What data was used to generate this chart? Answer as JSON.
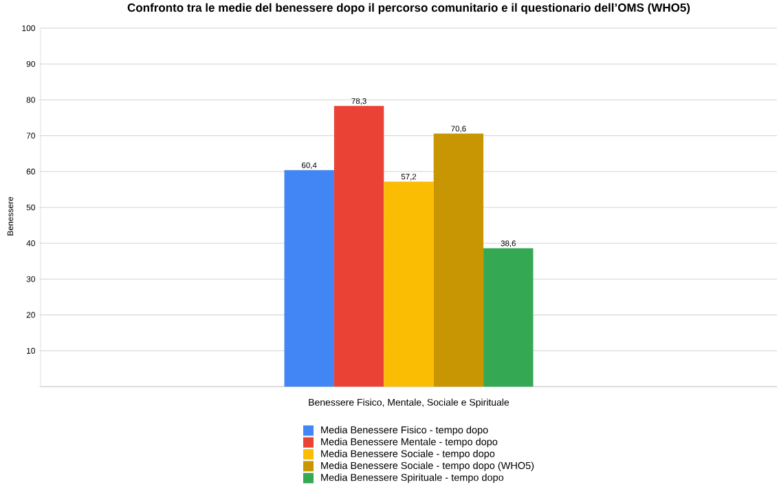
{
  "chart_data": {
    "type": "bar",
    "title": "Confronto tra le medie del benessere dopo il percorso comunitario e il questionario dell’OMS (WHO5)",
    "ylabel": "Benessere",
    "categories": [
      "Benessere Fisico, Mentale, Sociale e Spirituale"
    ],
    "series": [
      {
        "name": "Media Benessere Fisico - tempo dopo",
        "color": "#4285f4",
        "values": [
          60.4
        ],
        "value_labels": [
          "60,4"
        ]
      },
      {
        "name": "Media Benessere Mentale - tempo dopo",
        "color": "#ea4335",
        "values": [
          78.3
        ],
        "value_labels": [
          "78,3"
        ]
      },
      {
        "name": "Media Benessere Sociale - tempo dopo",
        "color": "#fbbc04",
        "values": [
          57.2
        ],
        "value_labels": [
          "57,2"
        ]
      },
      {
        "name": "Media Benessere Sociale - tempo dopo (WHO5)",
        "color": "#c89603",
        "values": [
          70.6
        ],
        "value_labels": [
          "70,6"
        ]
      },
      {
        "name": "Media Benessere Spirituale - tempo dopo",
        "color": "#34a853",
        "values": [
          38.6
        ],
        "value_labels": [
          "38,6"
        ]
      }
    ],
    "ylim": [
      0,
      100
    ],
    "yticks": [
      {
        "value": 0,
        "label": null
      },
      10,
      20,
      30,
      40,
      50,
      60,
      70,
      80,
      90,
      100
    ],
    "grid": "y",
    "legend": "bottom"
  }
}
